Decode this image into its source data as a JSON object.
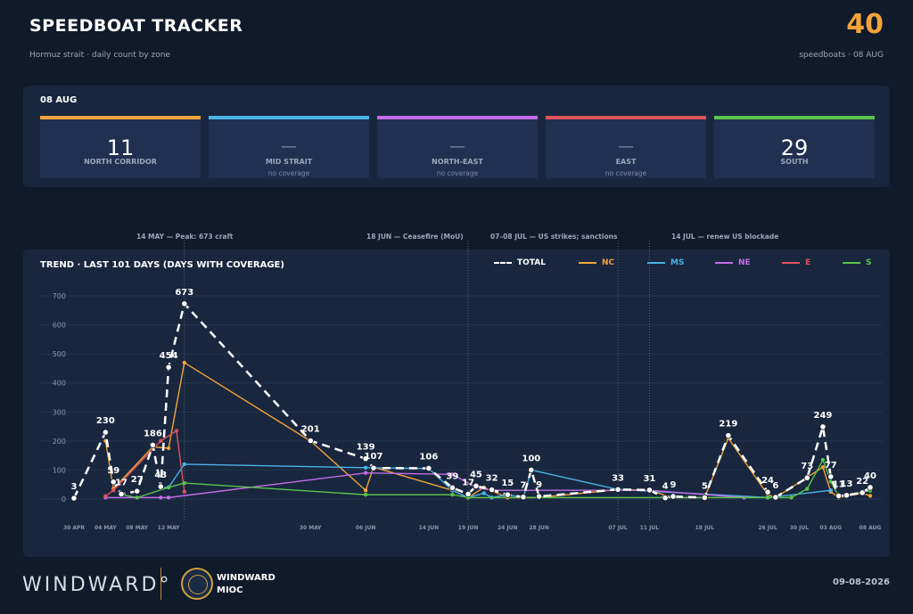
{
  "header": {
    "title": "SPEEDBOAT TRACKER",
    "subtitle": "Hormuz strait  ·  daily count by zone",
    "total": "40",
    "total_caption": "speedboats  ·  08 AUG"
  },
  "zones": {
    "date": "08 AUG",
    "cards": [
      {
        "name": "NORTH CORRIDOR",
        "value": "11",
        "note": "",
        "color": "#f2a33a"
      },
      {
        "name": "MID STRAIT",
        "value": "—",
        "note": "no coverage",
        "color": "#4ab3e6"
      },
      {
        "name": "NORTH-EAST",
        "value": "—",
        "note": "no coverage",
        "color": "#c46be6"
      },
      {
        "name": "EAST",
        "value": "—",
        "note": "no coverage",
        "color": "#e0525a"
      },
      {
        "name": "SOUTH",
        "value": "29",
        "note": "",
        "color": "#5ac44a"
      }
    ]
  },
  "events": [
    {
      "label": "14 MAY — Peak: 673 craft"
    },
    {
      "label": "18 JUN — Ceasefire (MoU)"
    },
    {
      "label": "07–08 JUL — US strikes; sanctions"
    },
    {
      "label": "14 JUL — renew US blockade"
    }
  ],
  "chart": {
    "title": "TREND  ·  LAST 101 DAYS  (DAYS WITH COVERAGE)"
  },
  "footer": {
    "brand": "WINDWARD°",
    "org_line1": "WINDWARD",
    "org_line2": "MIOC",
    "date": "09-08-2026"
  },
  "chart_data": {
    "type": "line",
    "title": "TREND · LAST 101 DAYS (DAYS WITH COVERAGE)",
    "ylim": [
      0,
      700
    ],
    "yticks": [
      0,
      100,
      200,
      300,
      400,
      500,
      600,
      700
    ],
    "xticks": [
      "30 APR",
      "04 MAY",
      "08 MAY",
      "12 MAY",
      "30 MAY",
      "06 JUN",
      "14 JUN",
      "19 JUN",
      "24 JUN",
      "28 JUN",
      "07 JUL",
      "11 JUL",
      "18 JUL",
      "26 JUL",
      "30 JUL",
      "03 AUG",
      "08 AUG"
    ],
    "xtick_days": [
      0,
      4,
      8,
      12,
      30,
      37,
      45,
      50,
      55,
      59,
      69,
      73,
      80,
      88,
      92,
      96,
      101
    ],
    "events_day": [
      14,
      50,
      69,
      73
    ],
    "series": [
      {
        "name": "TOTAL",
        "color": "#ffffff",
        "dashed": true,
        "points": [
          [
            0,
            3
          ],
          [
            4,
            230
          ],
          [
            5,
            59
          ],
          [
            6,
            17
          ],
          [
            8,
            27
          ],
          [
            10,
            186
          ],
          [
            11,
            43
          ],
          [
            12,
            454
          ],
          [
            14,
            673
          ],
          [
            30,
            201
          ],
          [
            37,
            139
          ],
          [
            38,
            107
          ],
          [
            45,
            106
          ],
          [
            48,
            39
          ],
          [
            50,
            17
          ],
          [
            51,
            45
          ],
          [
            53,
            32
          ],
          [
            55,
            15
          ],
          [
            57,
            7
          ],
          [
            58,
            100
          ],
          [
            59,
            9
          ],
          [
            69,
            33
          ],
          [
            73,
            31
          ],
          [
            75,
            4
          ],
          [
            76,
            9
          ],
          [
            80,
            5
          ],
          [
            83,
            219
          ],
          [
            88,
            24
          ],
          [
            89,
            6
          ],
          [
            93,
            73
          ],
          [
            95,
            249
          ],
          [
            96,
            77
          ],
          [
            97,
            11
          ],
          [
            98,
            13
          ],
          [
            100,
            22
          ],
          [
            101,
            40
          ]
        ]
      },
      {
        "name": "NC",
        "color": "#f2a33a",
        "dashed": false,
        "points": [
          [
            4,
            200
          ],
          [
            5,
            35
          ],
          [
            10,
            180
          ],
          [
            12,
            175
          ],
          [
            14,
            470
          ],
          [
            30,
            200
          ],
          [
            37,
            30
          ],
          [
            38,
            110
          ],
          [
            48,
            30
          ],
          [
            50,
            5
          ],
          [
            52,
            40
          ],
          [
            55,
            5
          ],
          [
            57,
            5
          ],
          [
            59,
            5
          ],
          [
            69,
            33
          ],
          [
            73,
            30
          ],
          [
            76,
            5
          ],
          [
            80,
            5
          ],
          [
            83,
            210
          ],
          [
            88,
            15
          ],
          [
            89,
            5
          ],
          [
            95,
            110
          ],
          [
            96,
            25
          ],
          [
            97,
            5
          ],
          [
            100,
            20
          ],
          [
            101,
            11
          ]
        ]
      },
      {
        "name": "MS",
        "color": "#4ab3e6",
        "dashed": false,
        "points": [
          [
            11,
            40
          ],
          [
            12,
            40
          ],
          [
            14,
            120
          ],
          [
            37,
            108
          ],
          [
            45,
            105
          ],
          [
            48,
            30
          ],
          [
            50,
            5
          ],
          [
            52,
            20
          ],
          [
            53,
            5
          ],
          [
            55,
            15
          ],
          [
            57,
            5
          ],
          [
            58,
            100
          ],
          [
            69,
            33
          ],
          [
            88,
            5
          ],
          [
            96,
            30
          ]
        ]
      },
      {
        "name": "NE",
        "color": "#c46be6",
        "dashed": false,
        "points": [
          [
            4,
            5
          ],
          [
            11,
            5
          ],
          [
            12,
            5
          ],
          [
            37,
            90
          ],
          [
            48,
            85
          ],
          [
            51,
            40
          ],
          [
            53,
            30
          ],
          [
            73,
            30
          ],
          [
            85,
            5
          ]
        ]
      },
      {
        "name": "E",
        "color": "#e0525a",
        "dashed": false,
        "points": [
          [
            4,
            10
          ],
          [
            5,
            30
          ],
          [
            11,
            200
          ],
          [
            13,
            235
          ],
          [
            14,
            25
          ]
        ]
      },
      {
        "name": "S",
        "color": "#5ac44a",
        "dashed": false,
        "points": [
          [
            6,
            15
          ],
          [
            8,
            5
          ],
          [
            12,
            40
          ],
          [
            14,
            55
          ],
          [
            37,
            15
          ],
          [
            48,
            15
          ],
          [
            50,
            5
          ],
          [
            59,
            5
          ],
          [
            88,
            5
          ],
          [
            91,
            5
          ],
          [
            93,
            35
          ],
          [
            95,
            135
          ],
          [
            96,
            60
          ],
          [
            97,
            10
          ],
          [
            101,
            29
          ]
        ]
      }
    ],
    "total_labels": [
      [
        0,
        3
      ],
      [
        4,
        230
      ],
      [
        5,
        59
      ],
      [
        6,
        17
      ],
      [
        8,
        27
      ],
      [
        10,
        186
      ],
      [
        11,
        43
      ],
      [
        12,
        454
      ],
      [
        14,
        673
      ],
      [
        30,
        201
      ],
      [
        37,
        139
      ],
      [
        38,
        107
      ],
      [
        45,
        106
      ],
      [
        48,
        39
      ],
      [
        50,
        17
      ],
      [
        51,
        45
      ],
      [
        53,
        32
      ],
      [
        55,
        15
      ],
      [
        57,
        7
      ],
      [
        58,
        100
      ],
      [
        59,
        9
      ],
      [
        69,
        33
      ],
      [
        73,
        31
      ],
      [
        75,
        4
      ],
      [
        76,
        9
      ],
      [
        80,
        5
      ],
      [
        83,
        219
      ],
      [
        88,
        24
      ],
      [
        89,
        6
      ],
      [
        93,
        73
      ],
      [
        95,
        249
      ],
      [
        96,
        77
      ],
      [
        97,
        11
      ],
      [
        98,
        13
      ],
      [
        100,
        22
      ],
      [
        101,
        40
      ]
    ]
  }
}
